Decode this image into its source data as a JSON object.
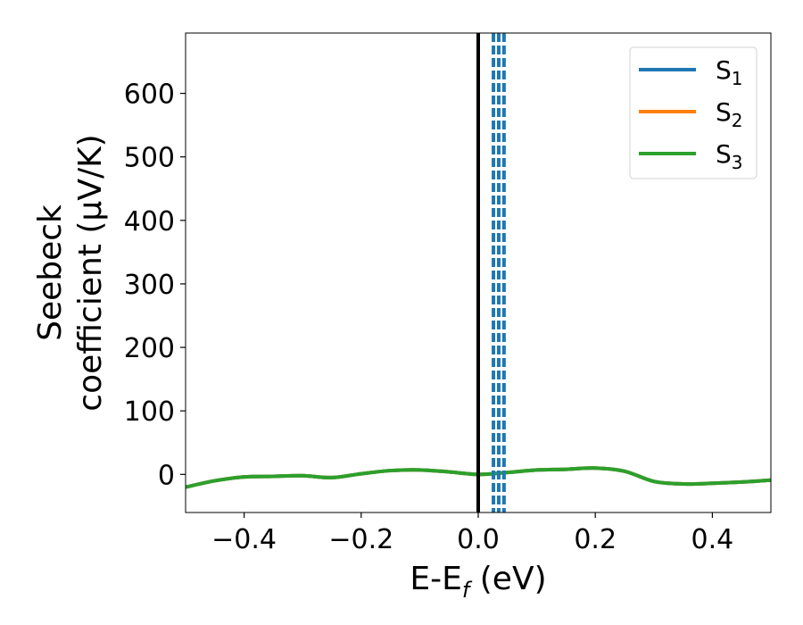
{
  "chart_data": {
    "type": "line",
    "xlabel": "E-E$f$ (eV)",
    "xlabel_main": "E-E",
    "xlabel_sub": "f",
    "xlabel_unit": " (eV)",
    "ylabel_line1": "Seebeck",
    "ylabel_line2": "coefficient  (μV/K)",
    "xlim": [
      -0.5,
      0.5
    ],
    "ylim": [
      -60,
      695
    ],
    "xticks": [
      -0.4,
      -0.2,
      0.0,
      0.2,
      0.4
    ],
    "xtick_labels": [
      "−0.4",
      "−0.2",
      "0.0",
      "0.2",
      "0.4"
    ],
    "yticks": [
      0,
      100,
      200,
      300,
      400,
      500,
      600
    ],
    "ytick_labels": [
      "0",
      "100",
      "200",
      "300",
      "400",
      "500",
      "600"
    ],
    "grid": false,
    "legend_position": "top-right",
    "series": [
      {
        "name": "S1",
        "label_main": "S",
        "label_sub": "1",
        "color": "#1f77b4",
        "x": [
          -0.5,
          -0.45,
          -0.4,
          -0.35,
          -0.3,
          -0.25,
          -0.2,
          -0.15,
          -0.1,
          -0.05,
          0.0,
          0.05,
          0.1,
          0.15,
          0.2,
          0.25,
          0.3,
          0.35,
          0.4,
          0.45,
          0.5
        ],
        "y": [
          -20,
          -10,
          -4,
          -3,
          -2,
          -5,
          1,
          6,
          7,
          4,
          0,
          3,
          7,
          8,
          10,
          5,
          -11,
          -15,
          -14,
          -12,
          -9
        ]
      },
      {
        "name": "S2",
        "label_main": "S",
        "label_sub": "2",
        "color": "#ff7f0e",
        "x": [
          -0.5,
          -0.45,
          -0.4,
          -0.35,
          -0.3,
          -0.25,
          -0.2,
          -0.15,
          -0.1,
          -0.05,
          0.0,
          0.05,
          0.1,
          0.15,
          0.2,
          0.25,
          0.3,
          0.35,
          0.4,
          0.45,
          0.5
        ],
        "y": [
          -20,
          -10,
          -4,
          -3,
          -2,
          -5,
          1,
          6,
          7,
          4,
          0,
          3,
          7,
          8,
          10,
          5,
          -11,
          -15,
          -14,
          -12,
          -9
        ]
      },
      {
        "name": "S3",
        "label_main": "S",
        "label_sub": "3",
        "color": "#2ca02c",
        "x": [
          -0.5,
          -0.45,
          -0.4,
          -0.35,
          -0.3,
          -0.25,
          -0.2,
          -0.15,
          -0.1,
          -0.05,
          0.0,
          0.05,
          0.1,
          0.15,
          0.2,
          0.25,
          0.3,
          0.35,
          0.4,
          0.45,
          0.5
        ],
        "y": [
          -20,
          -10,
          -4,
          -3,
          -2,
          -5,
          1,
          6,
          7,
          4,
          0,
          3,
          7,
          8,
          10,
          5,
          -11,
          -15,
          -14,
          -12,
          -9
        ]
      }
    ],
    "vlines": [
      {
        "x": 0.0,
        "color": "#000000",
        "style": "solid"
      },
      {
        "x": 0.026,
        "color": "#1f77b4",
        "style": "dashed"
      },
      {
        "x": 0.035,
        "color": "#1f77b4",
        "style": "dashed"
      },
      {
        "x": 0.044,
        "color": "#1f77b4",
        "style": "dashed"
      }
    ]
  }
}
